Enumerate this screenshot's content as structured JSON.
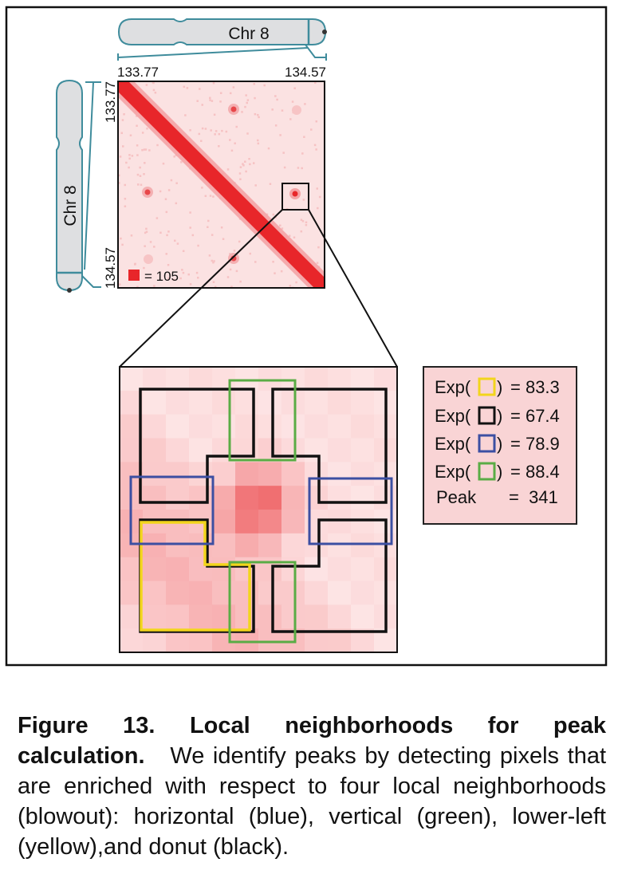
{
  "chromosome": {
    "label": "Chr 8"
  },
  "axis": {
    "start": "133.77",
    "end": "134.57"
  },
  "heatmap": {
    "legend_value": "= 105",
    "max_color": "#e8262a"
  },
  "neighborhoods": {
    "colors": {
      "lower_left": "#f2d51c",
      "donut": "#111111",
      "horizontal": "#3c4fa2",
      "vertical": "#5aac45"
    }
  },
  "expected_table": {
    "rows": [
      {
        "label_pre": "Exp(",
        "label_post": ")",
        "value": "= 83.3",
        "swatch": "lower_left"
      },
      {
        "label_pre": "Exp(",
        "label_post": ")",
        "value": "= 67.4",
        "swatch": "donut"
      },
      {
        "label_pre": "Exp(",
        "label_post": ")",
        "value": "= 78.9",
        "swatch": "horizontal"
      },
      {
        "label_pre": "Exp(",
        "label_post": ")",
        "value": "= 88.4",
        "swatch": "vertical"
      }
    ],
    "peak": {
      "label": "Peak",
      "value": "=  341"
    }
  },
  "caption": {
    "title": "Figure 13. Local neighborhoods for peak calculation.",
    "body": "We identify peaks by detecting pixels that are enriched with respect to four local neighborhoods (blowout): horizontal (blue), vertical (green), lower-left (yellow),and donut (black)."
  }
}
